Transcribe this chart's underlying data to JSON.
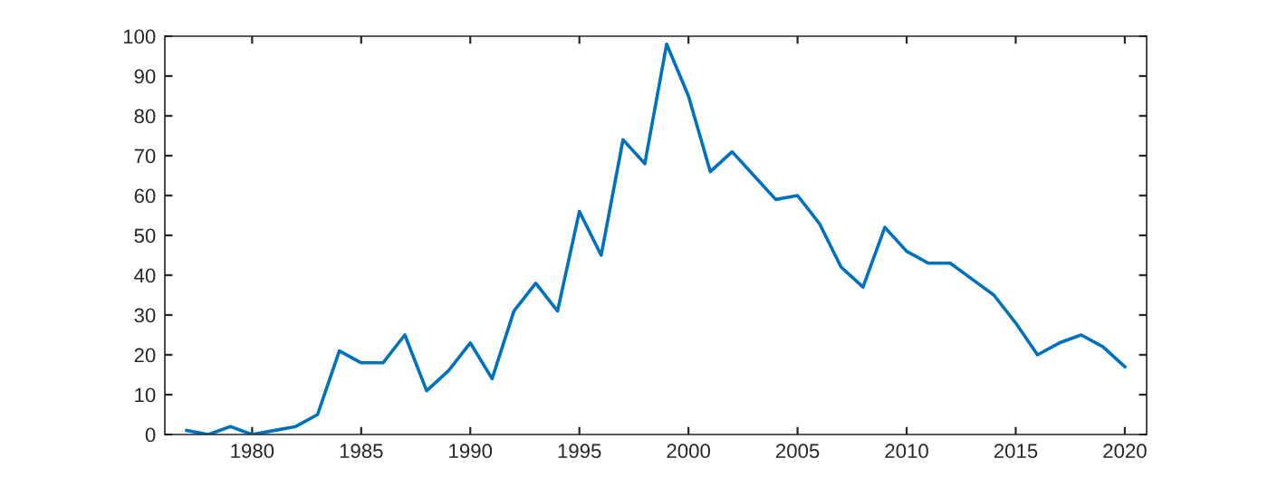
{
  "chart_data": {
    "type": "line",
    "x": [
      1977,
      1978,
      1979,
      1980,
      1981,
      1982,
      1983,
      1984,
      1985,
      1986,
      1987,
      1988,
      1989,
      1990,
      1991,
      1992,
      1993,
      1994,
      1995,
      1996,
      1997,
      1998,
      1999,
      2000,
      2001,
      2002,
      2003,
      2004,
      2005,
      2006,
      2007,
      2008,
      2009,
      2010,
      2011,
      2012,
      2013,
      2014,
      2015,
      2016,
      2017,
      2018,
      2019,
      2020
    ],
    "series": [
      {
        "color": "#0072bd",
        "values": [
          1,
          0,
          2,
          0,
          1,
          2,
          5,
          21,
          18,
          18,
          25,
          11,
          16,
          23,
          14,
          31,
          38,
          31,
          56,
          45,
          74,
          68,
          98,
          85,
          66,
          71,
          65,
          59,
          60,
          53,
          42,
          37,
          52,
          46,
          43,
          43,
          39,
          35,
          28,
          20,
          23,
          25,
          22,
          17
        ]
      }
    ],
    "xlim": [
      1976,
      2021
    ],
    "xticks": [
      1980,
      1985,
      1990,
      1995,
      2000,
      2005,
      2010,
      2015,
      2020
    ],
    "ylim": [
      0,
      100
    ],
    "yticks": [
      0,
      10,
      20,
      30,
      40,
      50,
      60,
      70,
      80,
      90,
      100
    ],
    "grid": false,
    "legend": false,
    "marker": "none",
    "line_style": "solid"
  }
}
